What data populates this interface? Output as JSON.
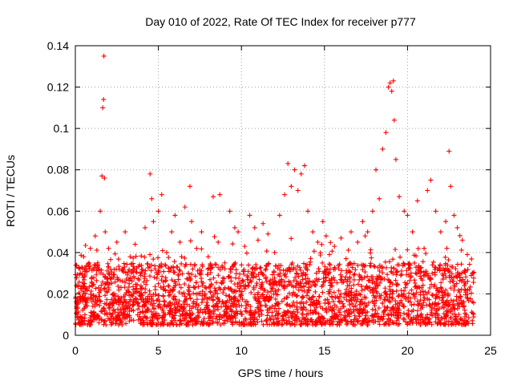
{
  "chart_data": {
    "type": "scatter",
    "title": "Day 010 of 2022, Rate Of TEC Index for receiver p777",
    "xlabel": "GPS time / hours",
    "ylabel": "ROTI / TECUs",
    "xlim": [
      0,
      25
    ],
    "ylim": [
      0,
      0.14
    ],
    "xticks": [
      0,
      5,
      10,
      15,
      20,
      25
    ],
    "xtick_labels": [
      "0",
      "5",
      "10",
      "15",
      "20",
      "25"
    ],
    "yticks": [
      0,
      0.02,
      0.04,
      0.06,
      0.08,
      0.1,
      0.12,
      0.14
    ],
    "ytick_labels": [
      "0",
      "0.02",
      "0.04",
      "0.06",
      "0.08",
      "0.1",
      "0.12",
      "0.14"
    ],
    "grid": true,
    "marker": "plus",
    "color": "#ff0000",
    "series": [
      {
        "name": "ROTI",
        "x": [
          0.05,
          0.15,
          0.3,
          0.5,
          0.7,
          0.9,
          1.0,
          1.2,
          1.35,
          1.5,
          1.6,
          1.65,
          1.7,
          1.72,
          1.75,
          1.8,
          2.0,
          2.2,
          2.5,
          2.8,
          3.0,
          3.3,
          3.6,
          3.9,
          4.2,
          4.5,
          4.6,
          4.7,
          5.0,
          5.2,
          5.5,
          5.8,
          6.0,
          6.3,
          6.6,
          6.9,
          7.0,
          7.3,
          7.6,
          8.0,
          8.3,
          8.6,
          8.7,
          9.0,
          9.3,
          9.6,
          9.8,
          10.2,
          10.5,
          10.8,
          11.0,
          11.3,
          11.6,
          12.0,
          12.3,
          12.6,
          12.8,
          13.0,
          13.2,
          13.4,
          13.6,
          13.8,
          14.0,
          14.3,
          14.6,
          14.9,
          15.1,
          15.3,
          15.6,
          16.0,
          16.3,
          16.6,
          17.0,
          17.3,
          17.6,
          17.9,
          18.1,
          18.3,
          18.5,
          18.7,
          18.85,
          18.95,
          19.05,
          19.15,
          19.2,
          19.3,
          19.5,
          19.8,
          20.0,
          20.3,
          20.6,
          21.0,
          21.2,
          21.4,
          21.7,
          22.0,
          22.3,
          22.5,
          22.6,
          22.8,
          23.0,
          23.3,
          23.6,
          23.9
        ],
        "y": [
          0.024,
          0.018,
          0.03,
          0.038,
          0.022,
          0.042,
          0.028,
          0.048,
          0.035,
          0.06,
          0.077,
          0.11,
          0.114,
          0.135,
          0.076,
          0.05,
          0.042,
          0.028,
          0.045,
          0.032,
          0.05,
          0.038,
          0.044,
          0.03,
          0.052,
          0.078,
          0.066,
          0.055,
          0.06,
          0.068,
          0.04,
          0.05,
          0.058,
          0.045,
          0.062,
          0.072,
          0.055,
          0.042,
          0.05,
          0.038,
          0.067,
          0.045,
          0.068,
          0.035,
          0.06,
          0.052,
          0.05,
          0.043,
          0.058,
          0.052,
          0.046,
          0.054,
          0.049,
          0.04,
          0.058,
          0.068,
          0.083,
          0.072,
          0.08,
          0.07,
          0.078,
          0.082,
          0.06,
          0.05,
          0.045,
          0.055,
          0.048,
          0.039,
          0.043,
          0.047,
          0.037,
          0.05,
          0.045,
          0.055,
          0.05,
          0.06,
          0.08,
          0.066,
          0.09,
          0.098,
          0.12,
          0.122,
          0.118,
          0.123,
          0.104,
          0.085,
          0.067,
          0.06,
          0.058,
          0.05,
          0.065,
          0.042,
          0.07,
          0.075,
          0.06,
          0.05,
          0.055,
          0.089,
          0.072,
          0.058,
          0.052,
          0.046,
          0.039,
          0.03
        ]
      }
    ],
    "dense_band": {
      "description_range_y": [
        0.005,
        0.035
      ],
      "x_range": [
        0,
        24
      ]
    }
  }
}
